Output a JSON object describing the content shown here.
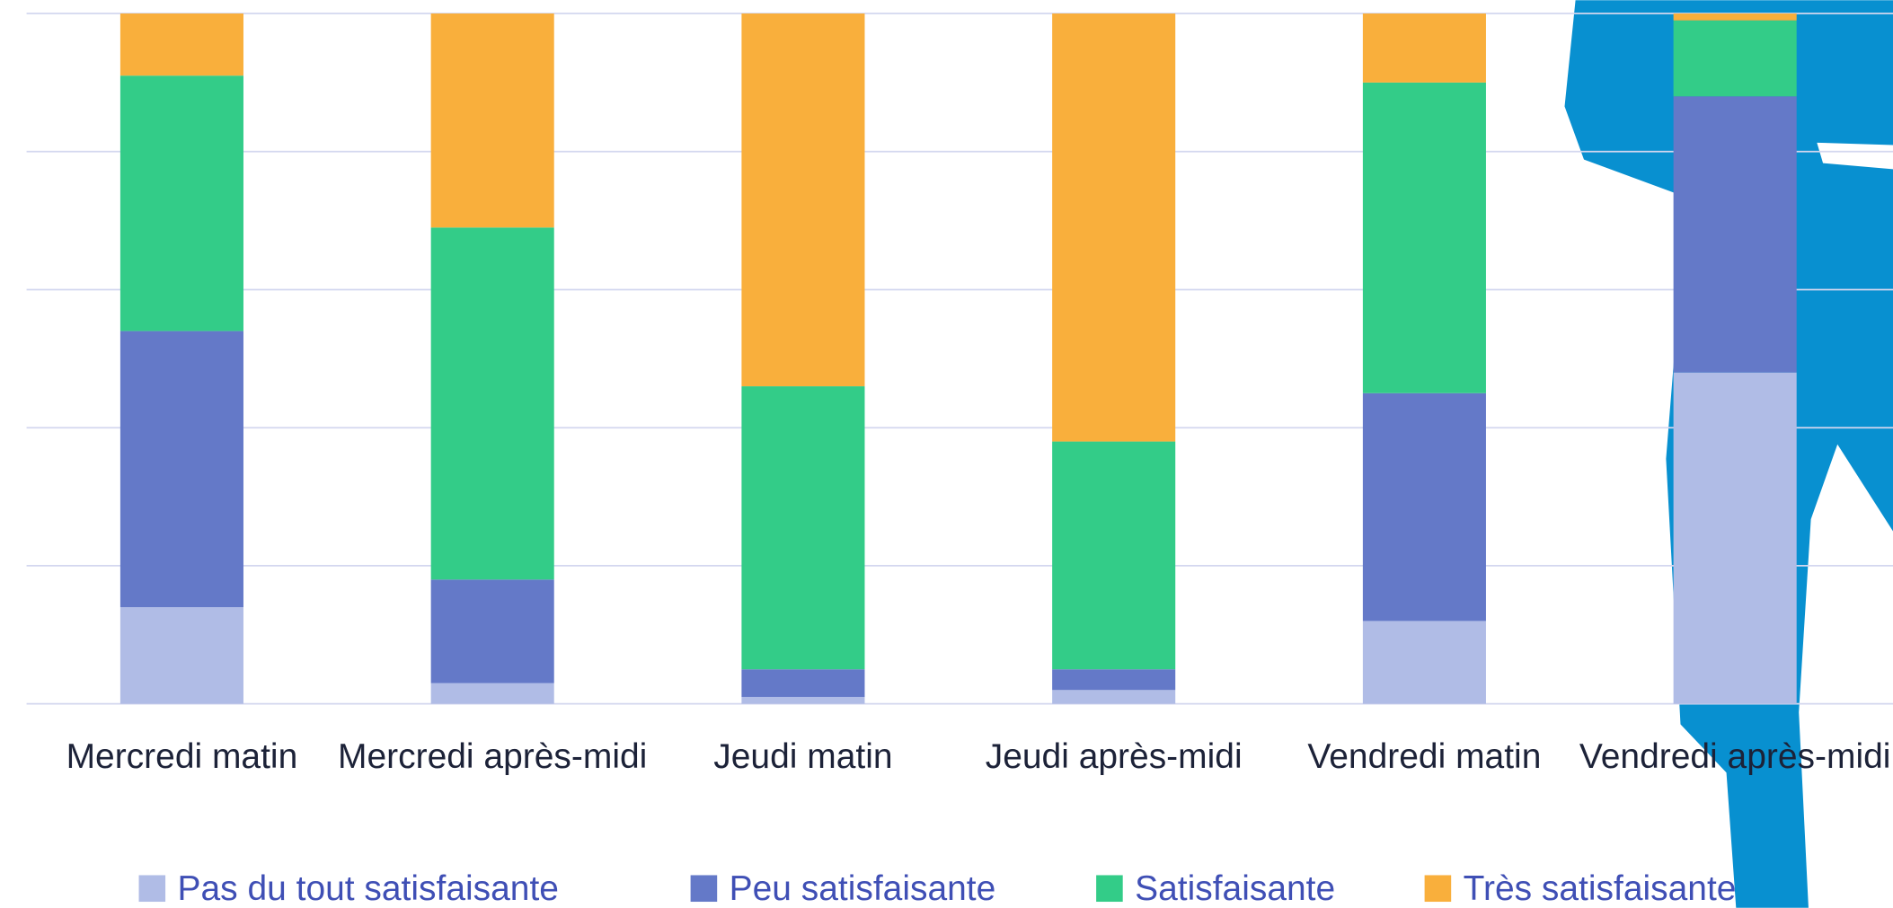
{
  "chart_data": {
    "type": "stacked_bar",
    "categories": [
      "Mercredi matin",
      "Mercredi après-midi",
      "Jeudi matin",
      "Jeudi après-midi",
      "Vendredi matin",
      "Vendredi après-midi"
    ],
    "series": [
      {
        "name": "Pas du tout satisfaisante",
        "color": "#b0bce6",
        "values": [
          14,
          3,
          1,
          2,
          12,
          48
        ]
      },
      {
        "name": "Peu satisfaisante",
        "color": "#6479c8",
        "values": [
          40,
          15,
          4,
          3,
          33,
          40
        ]
      },
      {
        "name": "Satisfaisante",
        "color": "#33cc88",
        "values": [
          37,
          51,
          41,
          33,
          45,
          11
        ]
      },
      {
        "name": "Très satisfaisante",
        "color": "#f9af3c",
        "values": [
          9,
          31,
          54,
          62,
          10,
          1
        ]
      }
    ],
    "ylim": [
      0,
      100
    ],
    "yticks": [
      0,
      20,
      40,
      60,
      80,
      100
    ],
    "grid": true,
    "tick_labels": false,
    "legend": "bottom"
  }
}
